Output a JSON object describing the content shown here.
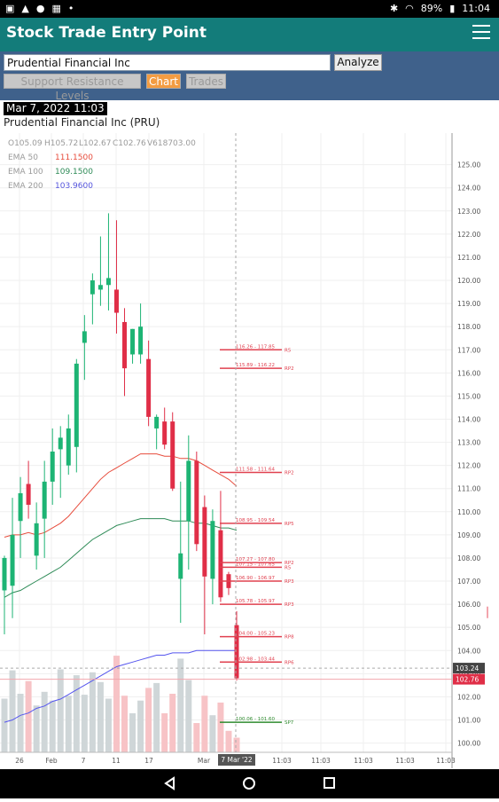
{
  "status_bar": {
    "battery": "89%",
    "time": "11:04",
    "left_icons": [
      "notification-icon",
      "warning-icon",
      "location-icon",
      "photo-icon",
      "more-dots-icon"
    ],
    "right_icons": [
      "bluetooth-icon",
      "wifi-icon",
      "signal-icon",
      "battery-icon"
    ]
  },
  "app_bar": {
    "title": "Stock Trade Entry Point"
  },
  "search": {
    "value": "Prudential Financial Inc",
    "analyze_label": "Analyze"
  },
  "tabs": [
    {
      "label": "Support Resistance Levels",
      "active": false
    },
    {
      "label": "Chart",
      "active": true
    },
    {
      "label": "Trades",
      "active": false
    }
  ],
  "chart_header": {
    "timestamp": "Mar 7, 2022 11:03",
    "title": "Prudential Financial Inc (PRU)"
  },
  "ohlc_legend": {
    "o": "O105.09",
    "h": "H105.72",
    "l": "L102.67",
    "c": "C102.76",
    "v": "V618703.00"
  },
  "ema_legend": [
    {
      "label": "EMA 50",
      "value": "111.1500",
      "color": "#e74c3c"
    },
    {
      "label": "EMA 100",
      "value": "109.1500",
      "color": "#2e8b57"
    },
    {
      "label": "EMA 200",
      "value": "103.9600",
      "color": "#5555dd"
    }
  ],
  "colors": {
    "up": "#1db474",
    "down": "#e02e47",
    "ema50": "#e74c3c",
    "ema100": "#2e8b57",
    "ema200": "#5555ee",
    "level": "#e0404f",
    "support": "#2e8b2e",
    "accent": "#137c7a",
    "controls_bg": "#3f618b"
  },
  "chart_data": {
    "type": "candlestick",
    "y_axis_ticks": [
      "125.00",
      "124.00",
      "123.00",
      "122.00",
      "121.00",
      "120.00",
      "119.00",
      "118.00",
      "117.00",
      "116.00",
      "115.00",
      "114.00",
      "113.00",
      "112.00",
      "111.00",
      "110.00",
      "109.00",
      "108.00",
      "107.00",
      "106.00",
      "105.00",
      "104.00",
      "103.00",
      "102.00",
      "101.00",
      "100.00"
    ],
    "ylim": [
      99.6,
      125.6
    ],
    "x_axis_ticks": [
      "26",
      "Feb",
      "7",
      "11",
      "17",
      "Mar",
      "11:03",
      "11:03",
      "11:03",
      "11:03",
      "11:03"
    ],
    "crosshair_label": "7 Mar '22",
    "price_tags": [
      {
        "value": 103.24,
        "text": "103.24"
      },
      {
        "value": 102.76,
        "text": "102.76"
      }
    ],
    "candles": [
      {
        "o": 106.6,
        "h": 108.1,
        "l": 104.7,
        "c": 108.0
      },
      {
        "o": 106.8,
        "h": 110.6,
        "l": 105.4,
        "c": 109.0
      },
      {
        "o": 109.6,
        "h": 111.5,
        "l": 108.0,
        "c": 110.8
      },
      {
        "o": 111.2,
        "h": 112.2,
        "l": 109.7,
        "c": 110.3
      },
      {
        "o": 108.1,
        "h": 110.4,
        "l": 107.5,
        "c": 109.5
      },
      {
        "o": 109.7,
        "h": 112.2,
        "l": 108.0,
        "c": 111.3
      },
      {
        "o": 111.3,
        "h": 113.6,
        "l": 110.3,
        "c": 112.6
      },
      {
        "o": 112.7,
        "h": 113.7,
        "l": 110.6,
        "c": 113.2
      },
      {
        "o": 112.0,
        "h": 114.2,
        "l": 111.6,
        "c": 113.6
      },
      {
        "o": 112.8,
        "h": 116.6,
        "l": 111.7,
        "c": 116.4
      },
      {
        "o": 117.3,
        "h": 118.5,
        "l": 115.7,
        "c": 117.8
      },
      {
        "o": 119.4,
        "h": 120.3,
        "l": 118.1,
        "c": 120.0
      },
      {
        "o": 119.6,
        "h": 121.9,
        "l": 118.9,
        "c": 119.8
      },
      {
        "o": 119.8,
        "h": 122.9,
        "l": 118.7,
        "c": 120.1
      },
      {
        "o": 119.6,
        "h": 122.6,
        "l": 117.7,
        "c": 118.6
      },
      {
        "o": 118.2,
        "h": 118.8,
        "l": 115.0,
        "c": 116.2
      },
      {
        "o": 116.8,
        "h": 117.9,
        "l": 116.4,
        "c": 117.9
      },
      {
        "o": 116.8,
        "h": 119.0,
        "l": 116.4,
        "c": 118.0
      },
      {
        "o": 116.6,
        "h": 117.4,
        "l": 113.7,
        "c": 114.1
      },
      {
        "o": 113.6,
        "h": 114.2,
        "l": 112.7,
        "c": 114.1
      },
      {
        "o": 113.9,
        "h": 114.5,
        "l": 112.7,
        "c": 112.9
      },
      {
        "o": 113.9,
        "h": 114.3,
        "l": 110.9,
        "c": 111.0
      },
      {
        "o": 107.1,
        "h": 111.3,
        "l": 105.2,
        "c": 108.2
      },
      {
        "o": 109.6,
        "h": 113.3,
        "l": 107.5,
        "c": 112.2
      },
      {
        "o": 112.2,
        "h": 112.6,
        "l": 108.3,
        "c": 108.6
      },
      {
        "o": 110.2,
        "h": 110.7,
        "l": 104.7,
        "c": 107.2
      },
      {
        "o": 107.1,
        "h": 110.1,
        "l": 106.0,
        "c": 109.6
      },
      {
        "o": 109.2,
        "h": 110.9,
        "l": 106.1,
        "c": 106.3
      },
      {
        "o": 107.3,
        "h": 107.4,
        "l": 106.4,
        "c": 106.7
      },
      {
        "o": 105.1,
        "h": 105.7,
        "l": 102.7,
        "c": 102.8
      }
    ],
    "volume_bars": [
      0.55,
      0.84,
      0.6,
      0.73,
      0.48,
      0.62,
      0.53,
      0.85,
      0.58,
      0.79,
      0.59,
      0.82,
      0.72,
      0.55,
      0.99,
      0.58,
      0.4,
      0.53,
      0.66,
      0.71,
      0.4,
      0.6,
      0.96,
      0.74,
      0.3,
      0.58,
      0.38,
      0.51,
      0.22,
      0.15
    ],
    "ema50": [
      108.9,
      109.0,
      109.0,
      109.1,
      109.0,
      109.1,
      109.3,
      109.5,
      109.8,
      110.2,
      110.6,
      111.0,
      111.4,
      111.7,
      111.9,
      112.1,
      112.3,
      112.5,
      112.5,
      112.5,
      112.4,
      112.4,
      112.3,
      112.3,
      112.2,
      112.0,
      111.8,
      111.6,
      111.4,
      111.1
    ],
    "ema100": [
      106.3,
      106.5,
      106.6,
      106.8,
      107.0,
      107.2,
      107.4,
      107.6,
      107.9,
      108.2,
      108.5,
      108.8,
      109.0,
      109.2,
      109.4,
      109.5,
      109.6,
      109.7,
      109.7,
      109.7,
      109.7,
      109.6,
      109.6,
      109.6,
      109.5,
      109.5,
      109.4,
      109.3,
      109.3,
      109.2
    ],
    "ema200": [
      100.9,
      101.0,
      101.2,
      101.3,
      101.5,
      101.6,
      101.8,
      101.9,
      102.1,
      102.3,
      102.5,
      102.7,
      102.9,
      103.1,
      103.3,
      103.4,
      103.5,
      103.6,
      103.7,
      103.8,
      103.8,
      103.9,
      103.9,
      103.9,
      104.0,
      104.0,
      104.0,
      104.0,
      104.0,
      104.0
    ],
    "levels": [
      {
        "value": 117.0,
        "label": "116.26 - 117.85",
        "tag": "R5",
        "type": "resistance"
      },
      {
        "value": 116.2,
        "label": "115.89 - 116.22",
        "tag": "RP2",
        "type": "resistance"
      },
      {
        "value": 111.7,
        "label": "111.58 - 111.64",
        "tag": "RP2",
        "type": "resistance"
      },
      {
        "value": 109.5,
        "label": "108.95 - 109.54",
        "tag": "RP5",
        "type": "resistance"
      },
      {
        "value": 107.8,
        "label": "107.27 - 107.80",
        "tag": "RP2",
        "type": "resistance"
      },
      {
        "value": 107.6,
        "label": "107.15 - 107.65",
        "tag": "R5",
        "type": "resistance"
      },
      {
        "value": 107.0,
        "label": "106.90 - 106.97",
        "tag": "RP3",
        "type": "resistance"
      },
      {
        "value": 106.0,
        "label": "105.78 - 105.97",
        "tag": "RP3",
        "type": "resistance"
      },
      {
        "value": 104.6,
        "label": "104.00 - 105.23",
        "tag": "RP8",
        "type": "resistance"
      },
      {
        "value": 103.5,
        "label": "102.98 - 103.44",
        "tag": "RP6",
        "type": "resistance"
      },
      {
        "value": 100.9,
        "label": "100.06 - 101.60",
        "tag": "SP7",
        "type": "support"
      }
    ]
  }
}
